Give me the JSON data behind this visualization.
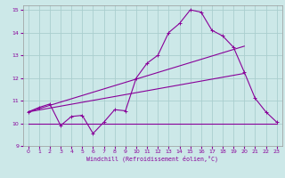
{
  "xlabel": "Windchill (Refroidissement éolien,°C)",
  "background_color": "#cce8e8",
  "grid_color": "#aacece",
  "line_color": "#880099",
  "xlim": [
    -0.5,
    23.5
  ],
  "ylim": [
    9,
    15.2
  ],
  "yticks": [
    9,
    10,
    11,
    12,
    13,
    14,
    15
  ],
  "xticks": [
    0,
    1,
    2,
    3,
    4,
    5,
    6,
    7,
    8,
    9,
    10,
    11,
    12,
    13,
    14,
    15,
    16,
    17,
    18,
    19,
    20,
    21,
    22,
    23
  ],
  "line1_x": [
    0,
    1,
    2,
    3,
    4,
    5,
    6,
    7,
    8,
    9,
    10,
    11,
    12,
    13,
    14,
    15,
    16,
    17,
    18,
    19,
    20,
    21,
    22,
    23
  ],
  "line1_y": [
    10.5,
    10.7,
    10.85,
    9.9,
    10.3,
    10.35,
    9.55,
    10.05,
    10.6,
    10.55,
    12.0,
    12.65,
    13.0,
    14.0,
    14.4,
    15.0,
    14.9,
    14.1,
    13.85,
    13.35,
    12.25,
    11.1,
    10.5,
    10.05
  ],
  "line2_x": [
    0,
    20
  ],
  "line2_y": [
    10.5,
    13.4
  ],
  "line3_x": [
    0,
    20
  ],
  "line3_y": [
    10.5,
    12.2
  ],
  "line4_x": [
    0,
    23
  ],
  "line4_y": [
    10.0,
    10.0
  ],
  "marker": "+"
}
